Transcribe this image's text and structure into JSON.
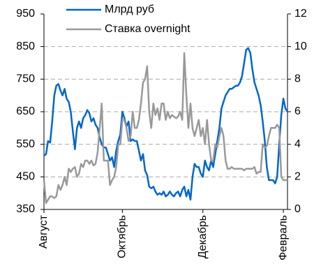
{
  "chart_data": {
    "type": "line",
    "categories": [
      "Август",
      null,
      null,
      null,
      null,
      null,
      null,
      null,
      null,
      null,
      null,
      null,
      null,
      null,
      null,
      null,
      null,
      null,
      null,
      null,
      null,
      null,
      null,
      null,
      null,
      null,
      null,
      null,
      null,
      null,
      null,
      null,
      null,
      null,
      null,
      null,
      null,
      null,
      "Октябрь",
      null,
      null,
      null,
      null,
      null,
      null,
      null,
      null,
      null,
      null,
      null,
      null,
      null,
      null,
      null,
      null,
      null,
      null,
      null,
      null,
      null,
      null,
      null,
      null,
      null,
      null,
      null,
      null,
      null,
      null,
      null,
      null,
      null,
      null,
      null,
      null,
      null,
      null,
      "Декабрь",
      null,
      null,
      null,
      null,
      null,
      null,
      null,
      null,
      null,
      null,
      null,
      null,
      null,
      null,
      null,
      null,
      null,
      null,
      null,
      null,
      null,
      null,
      null,
      null,
      null,
      null,
      null,
      null,
      null,
      null,
      null,
      null,
      null,
      null,
      null,
      null,
      null,
      null,
      "Февраль",
      null,
      null
    ],
    "series": [
      {
        "name": "Млрд руб",
        "color": "#0066cc",
        "values": [
          515,
          520,
          560,
          555,
          620,
          700,
          730,
          735,
          715,
          700,
          720,
          690,
          680,
          650,
          590,
          535,
          600,
          620,
          600,
          630,
          640,
          655,
          645,
          620,
          630,
          610,
          600,
          570,
          550,
          540,
          540,
          520,
          500,
          510,
          480,
          530,
          560,
          580,
          650,
          630,
          605,
          620,
          560,
          565,
          560,
          560,
          530,
          500,
          520,
          470,
          455,
          420,
          415,
          420,
          405,
          395,
          400,
          395,
          405,
          390,
          395,
          405,
          395,
          390,
          400,
          405,
          390,
          410,
          420,
          390,
          410,
          380,
          450,
          490,
          480,
          480,
          460,
          450,
          500,
          480,
          470,
          500,
          480,
          520,
          560,
          600,
          660,
          680,
          700,
          710,
          720,
          720,
          725,
          730,
          730,
          740,
          760,
          800,
          840,
          845,
          830,
          780,
          740,
          720,
          700,
          670,
          620,
          560,
          480,
          440,
          440,
          440,
          430,
          450,
          550,
          640,
          690,
          660,
          650
        ]
      },
      {
        "name": "Ставка overnight",
        "color": "#999999",
        "axis": "y2",
        "values": [
          1.8,
          0.4,
          0.6,
          0.8,
          0.8,
          0.7,
          0.8,
          1.5,
          1.2,
          1.5,
          2.0,
          1.5,
          2.5,
          2.3,
          2.5,
          2.6,
          2.0,
          2.2,
          2.8,
          2.6,
          3.0,
          3.0,
          2.8,
          3.0,
          2.7,
          2.8,
          3.5,
          5.0,
          6.5,
          3.0,
          3.0,
          3.0,
          1.5,
          1.8,
          2.0,
          2.6,
          4.0,
          4.0,
          5.5,
          5.5,
          5.0,
          4.2,
          4.5,
          6.0,
          5.0,
          5.0,
          5.5,
          6.5,
          7.8,
          8.0,
          8.8,
          6.0,
          5.0,
          6.5,
          5.8,
          6.2,
          5.5,
          6.5,
          6.5,
          5.5,
          6.0,
          5.6,
          5.8,
          5.7,
          5.6,
          5.7,
          6.0,
          5.5,
          9.6,
          7.0,
          5.0,
          6.5,
          5.0,
          4.5,
          5.0,
          5.5,
          4.5,
          5.0,
          4.0,
          5.5,
          4.0,
          3.0,
          3.0,
          4.0,
          3.8,
          4.5,
          5.0,
          4.5,
          3.0,
          2.5,
          2.5,
          2.6,
          2.5,
          2.5,
          2.5,
          2.5,
          2.5,
          2.4,
          2.5,
          2.5,
          2.5,
          2.5,
          2.6,
          2.2,
          2.3,
          2.3,
          4.0,
          3.8,
          3.9,
          4.5,
          5.0,
          5.0,
          5.0,
          5.2,
          5.0,
          2.0,
          1.8,
          1.8,
          1.8
        ]
      }
    ],
    "ylim": [
      350,
      950
    ],
    "yticks": [
      350,
      450,
      550,
      650,
      750,
      850,
      950
    ],
    "y2lim": [
      0,
      12
    ],
    "y2ticks": [
      0,
      2,
      4,
      6,
      8,
      10,
      12
    ],
    "grid": true,
    "legend": "top"
  }
}
